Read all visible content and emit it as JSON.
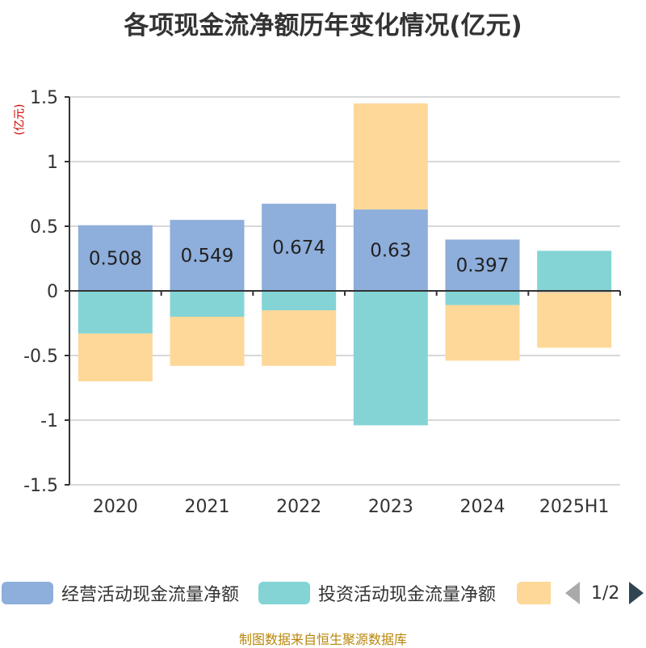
{
  "title": "各项现金流净额历年变化情况(亿元)",
  "unit_label": "(亿元)",
  "source": "制图数据来自恒生聚源数据库",
  "legend": {
    "items": [
      {
        "label": "经营活动现金流量净额",
        "color": "#8eaedb"
      },
      {
        "label": "投资活动现金流量净额",
        "color": "#84d4d6"
      },
      {
        "label": "",
        "color": "#fdd899"
      }
    ],
    "page": "1/2"
  },
  "chart_data": {
    "type": "bar",
    "stacked": true,
    "categories": [
      "2020",
      "2021",
      "2022",
      "2023",
      "2024",
      "2025H1"
    ],
    "ylim": [
      -1.5,
      1.5
    ],
    "yticks": [
      1.5,
      1,
      0.5,
      0,
      -0.5,
      -1,
      -1.5
    ],
    "ytick_labels": [
      "1.5",
      "1",
      "0.5",
      "0",
      "-0.5",
      "-1",
      "-1.5"
    ],
    "grid": true,
    "series": [
      {
        "name": "经营活动现金流量净额",
        "color": "#8eaedb",
        "values": [
          0.508,
          0.549,
          0.674,
          0.63,
          0.397,
          -0.01
        ],
        "labels": [
          "0.508",
          "0.549",
          "0.674",
          "0.63",
          "0.397",
          ""
        ]
      },
      {
        "name": "投资活动现金流量净额",
        "color": "#84d4d6",
        "values": [
          -0.33,
          -0.2,
          -0.15,
          -1.04,
          -0.11,
          0.31
        ]
      },
      {
        "name": "",
        "color": "#fdd899",
        "values": [
          -0.37,
          -0.38,
          -0.43,
          0.82,
          -0.43,
          -0.43
        ]
      }
    ]
  }
}
